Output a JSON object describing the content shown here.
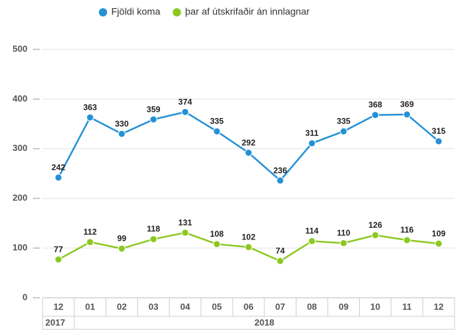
{
  "chart_data": {
    "type": "line",
    "categories": [
      "12",
      "01",
      "02",
      "03",
      "04",
      "05",
      "06",
      "07",
      "08",
      "09",
      "10",
      "11",
      "12"
    ],
    "years": [
      "2017",
      "2018",
      "2018",
      "2018",
      "2018",
      "2018",
      "2018",
      "2018",
      "2018",
      "2018",
      "2018",
      "2018",
      "2018"
    ],
    "series": [
      {
        "name": "Fjöldi koma",
        "color": "#2491d6",
        "values": [
          242,
          363,
          330,
          359,
          374,
          335,
          292,
          236,
          311,
          335,
          368,
          369,
          315
        ]
      },
      {
        "name": "þar af útskrifaðir án innlagnar",
        "color": "#8dc821",
        "values": [
          77,
          112,
          99,
          118,
          131,
          108,
          102,
          74,
          114,
          110,
          126,
          116,
          109
        ]
      }
    ],
    "ylim": [
      0,
      500
    ],
    "yticks": [
      0,
      100,
      200,
      300,
      400,
      500
    ],
    "grid": true,
    "legend": "top"
  }
}
